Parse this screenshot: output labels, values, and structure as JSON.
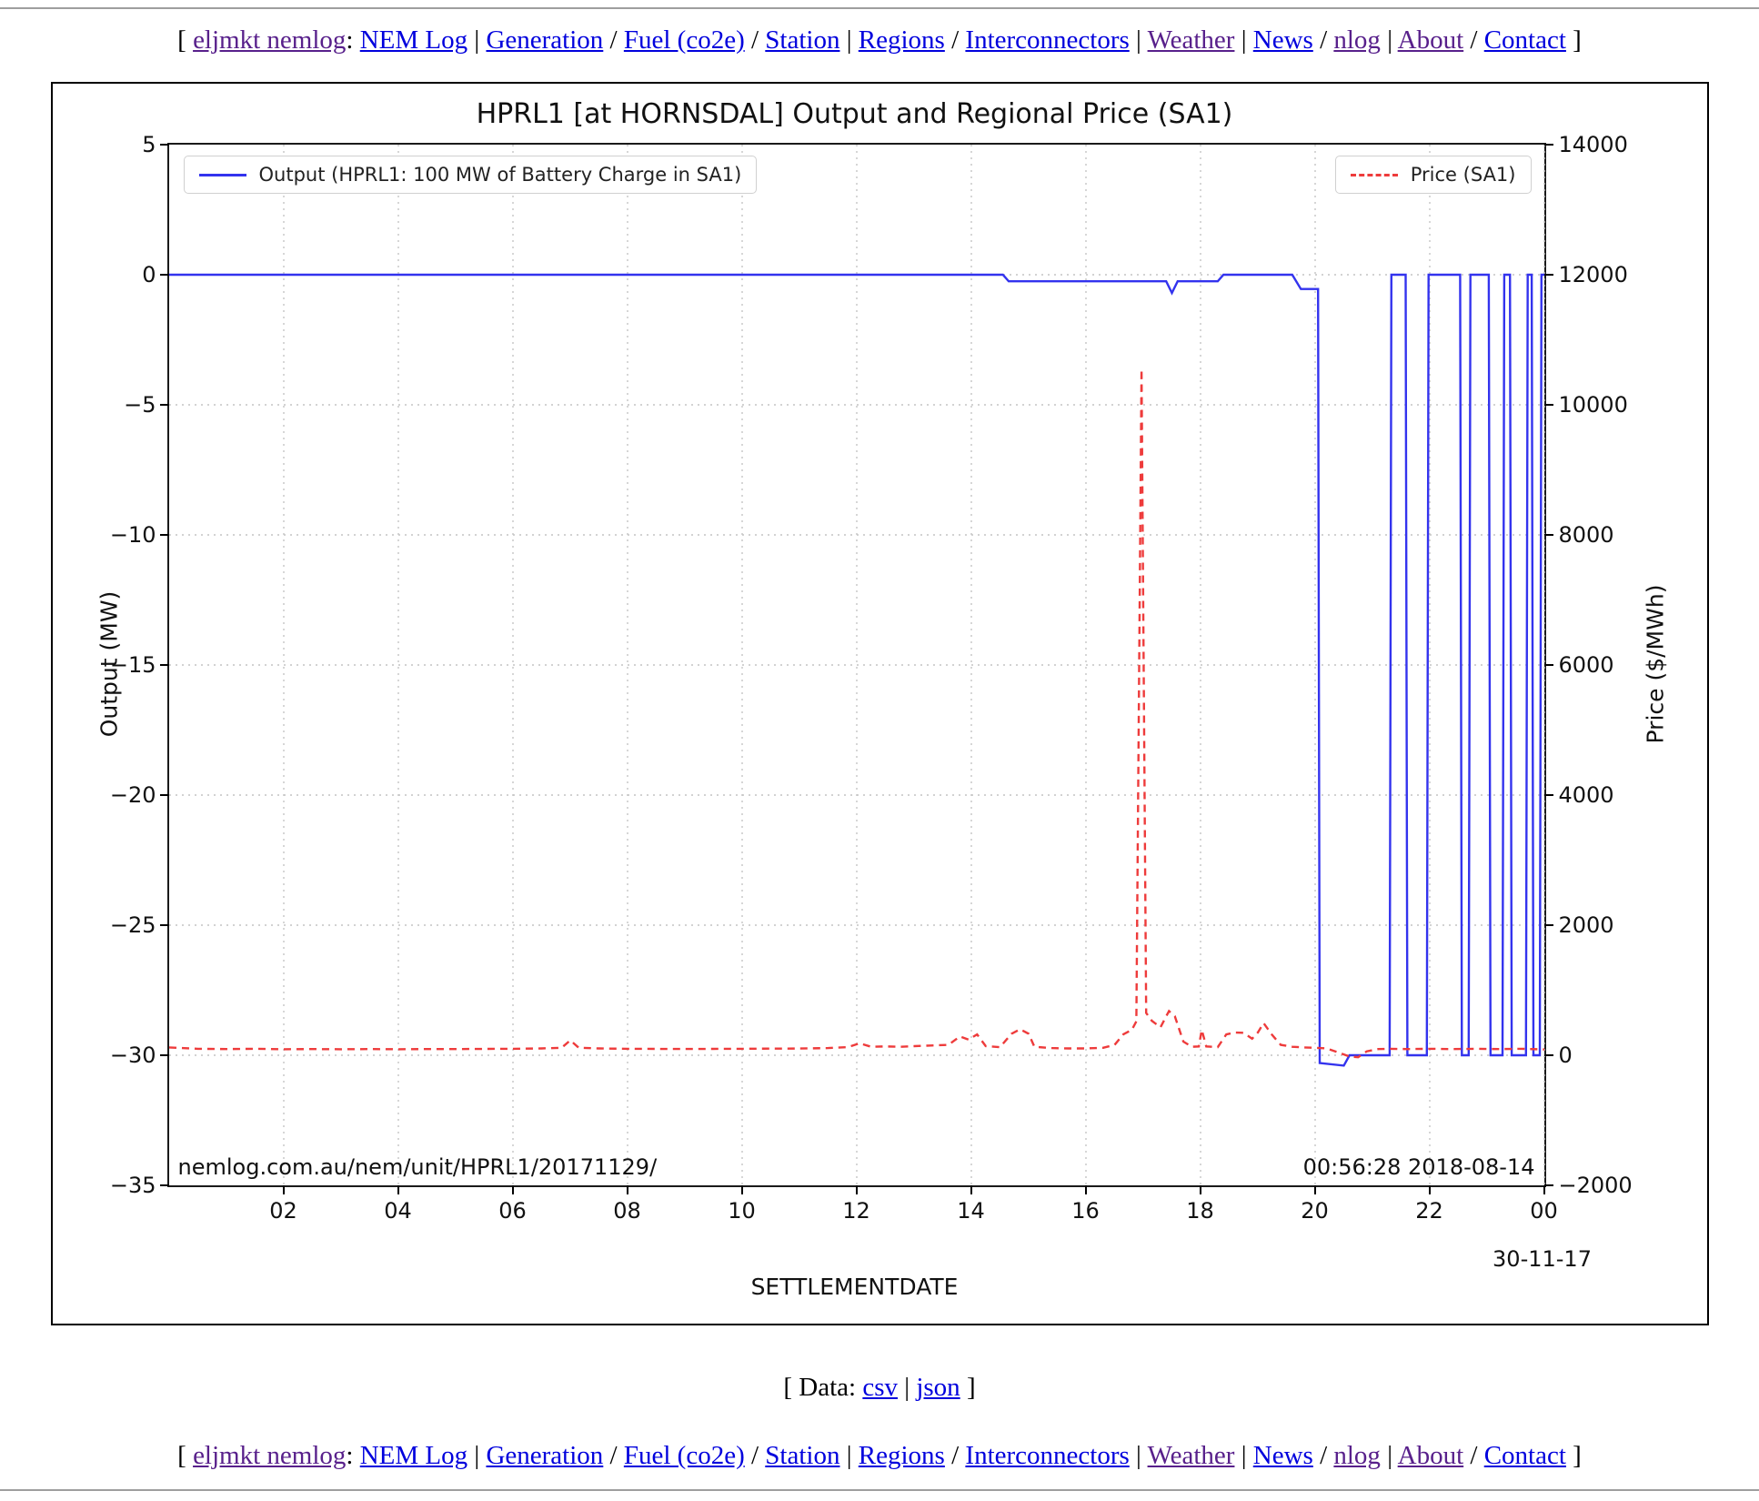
{
  "nav": {
    "open_bracket": "[",
    "site_label": "eljmkt nemlog",
    "colon": ":",
    "close_bracket": "]",
    "links": [
      {
        "label": "NEM Log",
        "visited": false,
        "sep_after": "|"
      },
      {
        "label": "Generation",
        "visited": false,
        "sep_after": "/"
      },
      {
        "label": "Fuel (co2e)",
        "visited": false,
        "sep_after": "/"
      },
      {
        "label": "Station",
        "visited": false,
        "sep_after": "|"
      },
      {
        "label": "Regions",
        "visited": false,
        "sep_after": "/"
      },
      {
        "label": "Interconnectors",
        "visited": false,
        "sep_after": "|"
      },
      {
        "label": "Weather",
        "visited": true,
        "sep_after": "|"
      },
      {
        "label": "News",
        "visited": false,
        "sep_after": "/"
      },
      {
        "label": "nlog",
        "visited": true,
        "sep_after": "|"
      },
      {
        "label": "About",
        "visited": true,
        "sep_after": "/"
      },
      {
        "label": "Contact",
        "visited": false,
        "sep_after": ""
      }
    ]
  },
  "data_row": {
    "prefix": "[ Data:",
    "csv_label": "csv",
    "separator": "|",
    "json_label": "json",
    "suffix": "]"
  },
  "colors": {
    "output_line": "#3333ee",
    "price_line": "#ee3b3b",
    "grid": "#c4c4c4",
    "link_blue": "#0000dd",
    "link_visited": "#58208b"
  },
  "chart_data": {
    "type": "line",
    "title": "HPRL1 [at HORNSDAL] Output and Regional Price (SA1)",
    "xlabel": "SETTLEMENTDATE",
    "ylabel_left": "Output (MW)",
    "ylabel_right": "Price ($/MWh)",
    "x_range_hours": [
      0,
      24
    ],
    "ylim_left": [
      -35,
      5
    ],
    "ylim_right": [
      -2000,
      14000
    ],
    "grid": true,
    "x_end_date_label": "30-11-17",
    "xticks": [
      {
        "hour": 2,
        "label": "02"
      },
      {
        "hour": 4,
        "label": "04"
      },
      {
        "hour": 6,
        "label": "06"
      },
      {
        "hour": 8,
        "label": "08"
      },
      {
        "hour": 10,
        "label": "10"
      },
      {
        "hour": 12,
        "label": "12"
      },
      {
        "hour": 14,
        "label": "14"
      },
      {
        "hour": 16,
        "label": "16"
      },
      {
        "hour": 18,
        "label": "18"
      },
      {
        "hour": 20,
        "label": "20"
      },
      {
        "hour": 22,
        "label": "22"
      },
      {
        "hour": 24,
        "label": "00"
      }
    ],
    "yticks_left": [
      {
        "value": 5,
        "label": "5"
      },
      {
        "value": 0,
        "label": "0"
      },
      {
        "value": -5,
        "label": "−5"
      },
      {
        "value": -10,
        "label": "−10"
      },
      {
        "value": -15,
        "label": "−15"
      },
      {
        "value": -20,
        "label": "−20"
      },
      {
        "value": -25,
        "label": "−25"
      },
      {
        "value": -30,
        "label": "−30"
      },
      {
        "value": -35,
        "label": "−35"
      }
    ],
    "yticks_right": [
      {
        "value": 14000,
        "label": "14000"
      },
      {
        "value": 12000,
        "label": "12000"
      },
      {
        "value": 10000,
        "label": "10000"
      },
      {
        "value": 8000,
        "label": "8000"
      },
      {
        "value": 6000,
        "label": "6000"
      },
      {
        "value": 4000,
        "label": "4000"
      },
      {
        "value": 2000,
        "label": "2000"
      },
      {
        "value": 0,
        "label": "0"
      },
      {
        "value": -2000,
        "label": "−2000"
      }
    ],
    "legend_left_position": "upper left",
    "legend_right_position": "upper right",
    "series": [
      {
        "name": "Output (HPRL1: 100 MW of Battery Charge in SA1)",
        "axis": "left",
        "units": "MW",
        "style": "solid",
        "color": "#3333ee",
        "points": [
          [
            0,
            0
          ],
          [
            14.55,
            0
          ],
          [
            14.65,
            -0.25
          ],
          [
            17.4,
            -0.25
          ],
          [
            17.5,
            -0.7
          ],
          [
            17.6,
            -0.25
          ],
          [
            18.3,
            -0.25
          ],
          [
            18.4,
            0
          ],
          [
            19.6,
            0
          ],
          [
            19.75,
            -0.55
          ],
          [
            20.05,
            -0.55
          ],
          [
            20.08,
            -30.3
          ],
          [
            20.5,
            -30.4
          ],
          [
            20.6,
            -30
          ],
          [
            21.3,
            -30
          ],
          [
            21.33,
            0
          ],
          [
            21.58,
            0
          ],
          [
            21.61,
            -30
          ],
          [
            21.95,
            -30
          ],
          [
            21.98,
            0
          ],
          [
            22.53,
            0
          ],
          [
            22.56,
            -30
          ],
          [
            22.68,
            -30
          ],
          [
            22.71,
            0
          ],
          [
            23.03,
            0
          ],
          [
            23.06,
            -30
          ],
          [
            23.27,
            -30
          ],
          [
            23.3,
            0
          ],
          [
            23.4,
            0
          ],
          [
            23.43,
            -30
          ],
          [
            23.68,
            -30
          ],
          [
            23.71,
            0
          ],
          [
            23.78,
            0
          ],
          [
            23.81,
            -30
          ],
          [
            23.92,
            -30
          ],
          [
            23.95,
            0
          ],
          [
            24,
            0
          ]
        ]
      },
      {
        "name": "Price (SA1)",
        "axis": "right",
        "units": "$/MWh",
        "style": "dashed",
        "color": "#ee3b3b",
        "points": [
          [
            0,
            120
          ],
          [
            0.5,
            100
          ],
          [
            1,
            95
          ],
          [
            1.5,
            100
          ],
          [
            2,
            92
          ],
          [
            2.5,
            95
          ],
          [
            3,
            92
          ],
          [
            3.5,
            95
          ],
          [
            4,
            93
          ],
          [
            4.5,
            95
          ],
          [
            5,
            95
          ],
          [
            5.5,
            98
          ],
          [
            6,
            100
          ],
          [
            6.5,
            105
          ],
          [
            6.85,
            115
          ],
          [
            7,
            230
          ],
          [
            7.15,
            115
          ],
          [
            7.5,
            105
          ],
          [
            8,
            100
          ],
          [
            8.5,
            98
          ],
          [
            9,
            97
          ],
          [
            9.5,
            98
          ],
          [
            10,
            100
          ],
          [
            10.5,
            102
          ],
          [
            11,
            103
          ],
          [
            11.5,
            110
          ],
          [
            11.85,
            125
          ],
          [
            12.05,
            185
          ],
          [
            12.25,
            130
          ],
          [
            12.5,
            135
          ],
          [
            12.75,
            130
          ],
          [
            13,
            140
          ],
          [
            13.3,
            150
          ],
          [
            13.6,
            160
          ],
          [
            13.8,
            290
          ],
          [
            13.95,
            240
          ],
          [
            14.1,
            320
          ],
          [
            14.25,
            140
          ],
          [
            14.5,
            125
          ],
          [
            14.7,
            330
          ],
          [
            14.85,
            400
          ],
          [
            15,
            330
          ],
          [
            15.1,
            130
          ],
          [
            15.4,
            110
          ],
          [
            15.7,
            105
          ],
          [
            16,
            105
          ],
          [
            16.3,
            115
          ],
          [
            16.5,
            160
          ],
          [
            16.65,
            320
          ],
          [
            16.8,
            390
          ],
          [
            16.88,
            520
          ],
          [
            16.97,
            10550
          ],
          [
            17.05,
            650
          ],
          [
            17.15,
            530
          ],
          [
            17.3,
            430
          ],
          [
            17.45,
            680
          ],
          [
            17.55,
            600
          ],
          [
            17.7,
            210
          ],
          [
            17.85,
            130
          ],
          [
            17.97,
            135
          ],
          [
            18.02,
            390
          ],
          [
            18.1,
            135
          ],
          [
            18.3,
            125
          ],
          [
            18.45,
            320
          ],
          [
            18.6,
            350
          ],
          [
            18.75,
            345
          ],
          [
            18.9,
            255
          ],
          [
            19.0,
            350
          ],
          [
            19.1,
            495
          ],
          [
            19.25,
            310
          ],
          [
            19.4,
            160
          ],
          [
            19.6,
            130
          ],
          [
            19.8,
            120
          ],
          [
            20,
            115
          ],
          [
            20.2,
            105
          ],
          [
            20.45,
            30
          ],
          [
            20.6,
            -20
          ],
          [
            20.75,
            -30
          ],
          [
            20.9,
            60
          ],
          [
            21.1,
            95
          ],
          [
            21.3,
            100
          ],
          [
            21.6,
            95
          ],
          [
            22,
            100
          ],
          [
            22.4,
            95
          ],
          [
            22.8,
            100
          ],
          [
            23.2,
            95
          ],
          [
            23.6,
            100
          ],
          [
            24,
            90
          ]
        ]
      }
    ],
    "annotations": {
      "watermark": "nemlog.com.au/nem/unit/HPRL1/20171129/",
      "timestamp": "00:56:28 2018-08-14"
    }
  }
}
